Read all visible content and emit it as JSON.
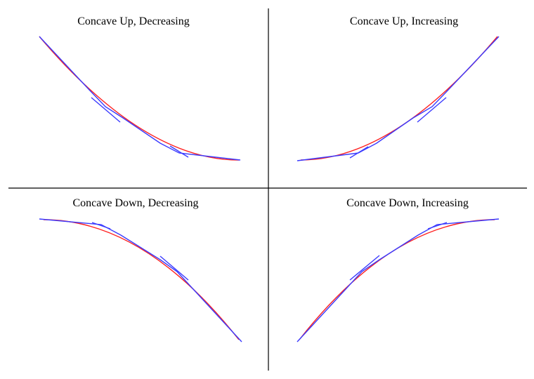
{
  "colors": {
    "curve": "#ff2020",
    "tangent": "#3a3aff",
    "divider": "#000000",
    "background": "#ffffff"
  },
  "quadrants": [
    {
      "id": "concave-up-decreasing",
      "title": "Concave Up, Decreasing",
      "concavity": "up",
      "direction": "decreasing"
    },
    {
      "id": "concave-up-increasing",
      "title": "Concave Up, Increasing",
      "concavity": "up",
      "direction": "increasing"
    },
    {
      "id": "concave-down-decreasing",
      "title": "Concave Down, Decreasing",
      "concavity": "down",
      "direction": "decreasing"
    },
    {
      "id": "concave-down-increasing",
      "title": "Concave Down, Increasing",
      "concavity": "down",
      "direction": "increasing"
    }
  ]
}
